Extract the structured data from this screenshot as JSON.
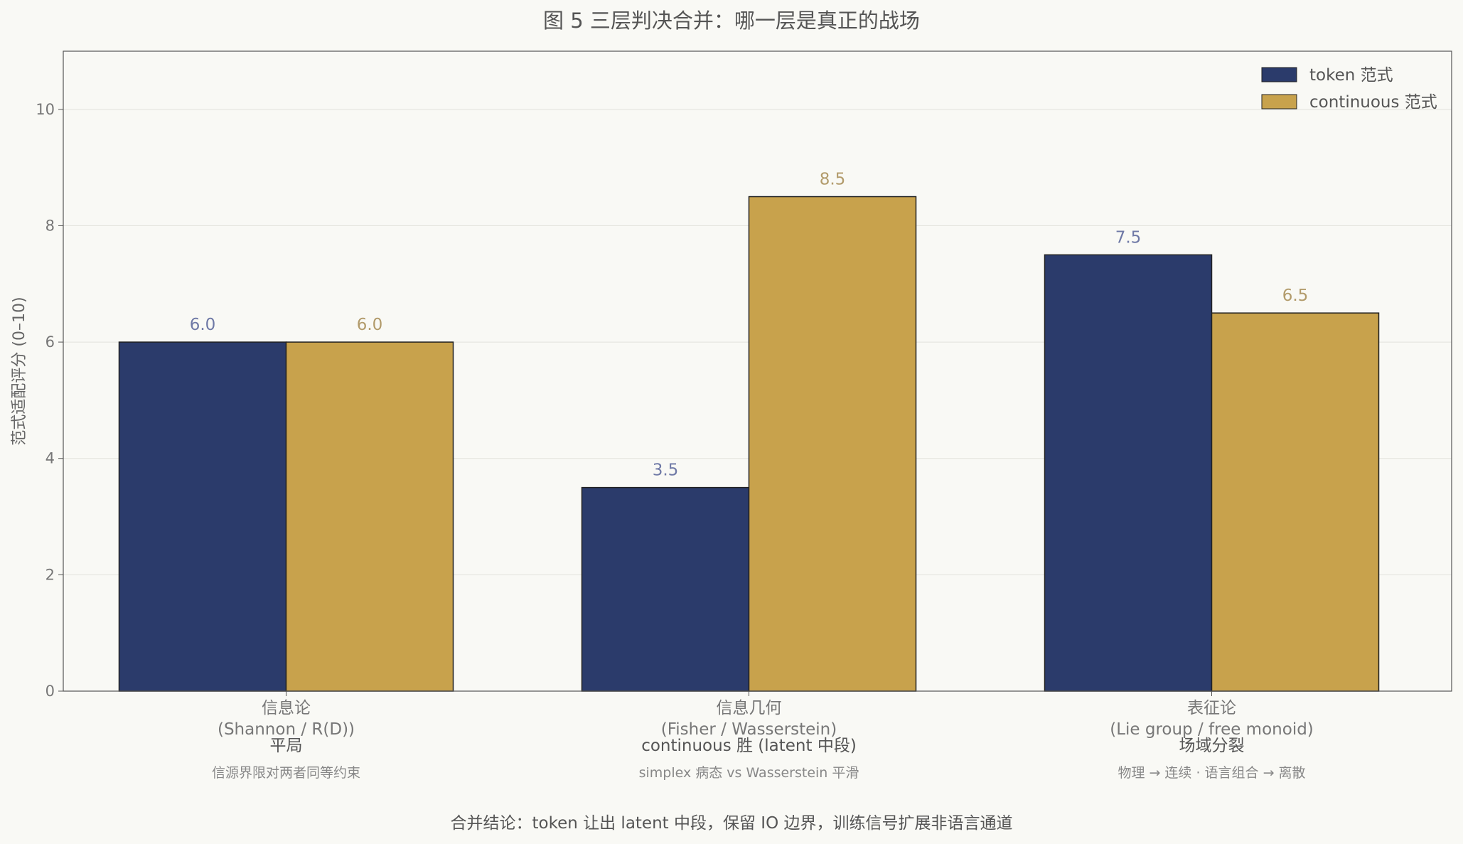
{
  "chart_data": {
    "type": "bar",
    "title": "图 5  三层判决合并：哪一层是真正的战场",
    "ylabel": "范式适配评分 (0–10)",
    "ylim": [
      0,
      11
    ],
    "yticks": [
      0,
      2,
      4,
      6,
      8,
      10
    ],
    "grid": "horizontal",
    "legend_position": "top-right",
    "categories": [
      {
        "name": "信息论",
        "sub": "(Shannon / R(D))",
        "verdict": "平局",
        "note": "信源界限对两者同等约束"
      },
      {
        "name": "信息几何",
        "sub": "(Fisher / Wasserstein)",
        "verdict": "continuous 胜 (latent 中段)",
        "note": "simplex 病态 vs Wasserstein 平滑"
      },
      {
        "name": "表征论",
        "sub": "(Lie group / free monoid)",
        "verdict": "场域分裂",
        "note": "物理 → 连续  ·  语言组合 → 离散"
      }
    ],
    "series": [
      {
        "name": "token 范式",
        "values": [
          6.0,
          3.5,
          7.5
        ],
        "labels": [
          "6.0",
          "3.5",
          "7.5"
        ],
        "color": "#2b3b6b",
        "label_color": "#6f79a6"
      },
      {
        "name": "continuous 范式",
        "values": [
          6.0,
          8.5,
          6.5
        ],
        "labels": [
          "6.0",
          "8.5",
          "6.5"
        ],
        "color": "#c8a24c",
        "label_color": "#b29b6b"
      }
    ],
    "footer": "合并结论：token 让出 latent 中段，保留 IO 边界，训练信号扩展非语言通道"
  }
}
